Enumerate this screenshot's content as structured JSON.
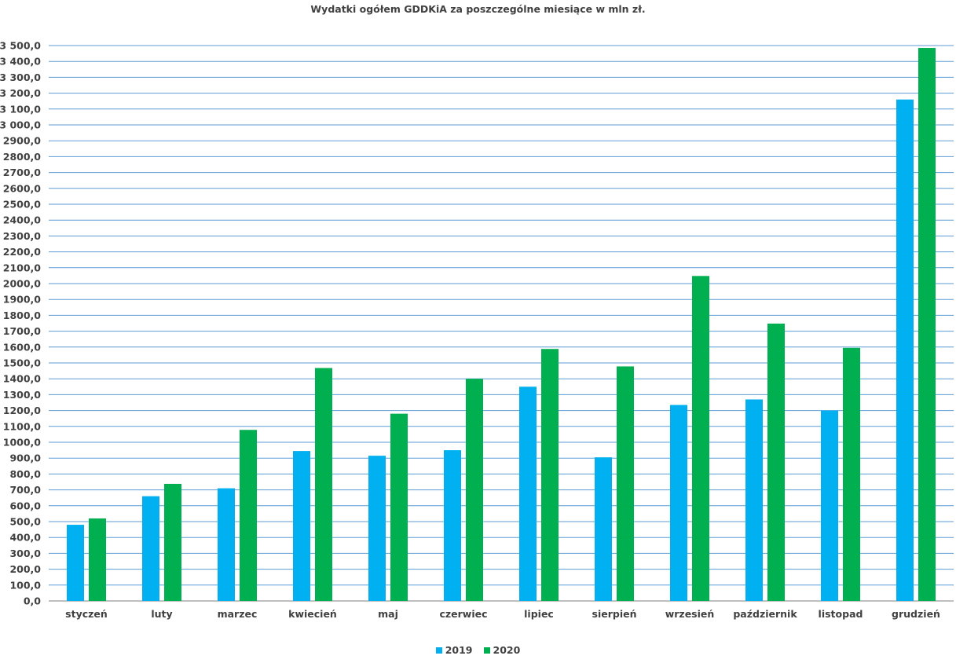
{
  "chart_data": {
    "type": "bar",
    "title": "Wydatki ogółem GDDKiA za poszczególne miesiące w mln zł.",
    "xlabel": "",
    "ylabel": "",
    "ylim": [
      0,
      3500
    ],
    "ytick_step": 100,
    "ytick_labels": [
      "0,0",
      "100,0",
      "200,0",
      "300,0",
      "400,0",
      "500,0",
      "600,0",
      "700,0",
      "800,0",
      "900,0",
      "1000,0",
      "1100,0",
      "1200,0",
      "1300,0",
      "1400,0",
      "1500,0",
      "1600,0",
      "1700,0",
      "1800,0",
      "1900,0",
      "2000,0",
      "2100,0",
      "2200,0",
      "2300,0",
      "2400,0",
      "2500,0",
      "2600,0",
      "2700,0",
      "2800,0",
      "2900,0",
      "3 000,0",
      "3 100,0",
      "3 200,0",
      "3 300,0",
      "3 400,0",
      "3 500,0"
    ],
    "categories": [
      "styczeń",
      "luty",
      "marzec",
      "kwiecień",
      "maj",
      "czerwiec",
      "lipiec",
      "sierpień",
      "wrzesień",
      "październik",
      "listopad",
      "grudzień"
    ],
    "series": [
      {
        "name": "2019",
        "color": "#00b0f0",
        "values": [
          480,
          660,
          710,
          945,
          915,
          950,
          1350,
          905,
          1235,
          1270,
          1200,
          3160
        ]
      },
      {
        "name": "2020",
        "color": "#00b050",
        "values": [
          520,
          738,
          1078,
          1468,
          1180,
          1400,
          1588,
          1478,
          2048,
          1748,
          1595,
          3485
        ]
      }
    ],
    "grid": true,
    "gridline_color": "#5b9bd5",
    "legend_position": "bottom-center"
  }
}
